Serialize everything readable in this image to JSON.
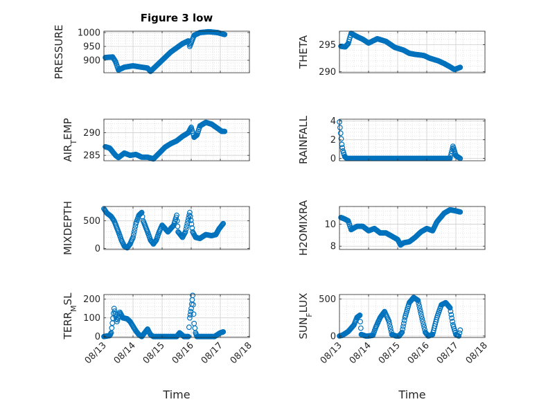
{
  "figure": {
    "title": "Figure 3 low"
  },
  "chart_data": [
    {
      "type": "scatter",
      "title": "Figure 3 low",
      "ylabel": "PRESSURE",
      "ylim": [
        855,
        1005
      ],
      "yticks": [
        900,
        950,
        1000
      ],
      "xlabel": "",
      "xlim": [
        13,
        18
      ],
      "xticks": [
        "08/13",
        "08/14",
        "08/15",
        "08/16",
        "08/17",
        "08/18"
      ],
      "xtick_labels_shown": false,
      "grid": true,
      "series": [
        {
          "color": "#0072BD",
          "marker": "circle",
          "trend": [
            [
              13.05,
              910
            ],
            [
              13.3,
              912
            ],
            [
              13.4,
              895
            ],
            [
              13.5,
              865
            ],
            [
              13.7,
              875
            ],
            [
              14.0,
              880
            ],
            [
              14.3,
              875
            ],
            [
              14.5,
              872
            ],
            [
              14.6,
              860
            ],
            [
              14.8,
              880
            ],
            [
              15.1,
              910
            ],
            [
              15.3,
              930
            ],
            [
              15.5,
              945
            ],
            [
              15.7,
              960
            ],
            [
              15.9,
              970
            ],
            [
              15.95,
              950
            ],
            [
              16.1,
              990
            ],
            [
              16.3,
              1000
            ],
            [
              16.6,
              1003
            ],
            [
              16.9,
              1000
            ],
            [
              17.15,
              993
            ]
          ]
        }
      ]
    },
    {
      "type": "scatter",
      "ylabel": "THETA",
      "ylim": [
        289.8,
        297.5
      ],
      "yticks": [
        290,
        295
      ],
      "xlim": [
        13,
        18
      ],
      "xtick_labels_shown": false,
      "grid": true,
      "series": [
        {
          "color": "#0072BD",
          "marker": "circle",
          "trend": [
            [
              13.05,
              294.7
            ],
            [
              13.2,
              294.6
            ],
            [
              13.3,
              295.2
            ],
            [
              13.4,
              297.1
            ],
            [
              13.6,
              296.5
            ],
            [
              13.8,
              296.0
            ],
            [
              14.0,
              295.3
            ],
            [
              14.3,
              296.1
            ],
            [
              14.6,
              295.6
            ],
            [
              14.9,
              294.5
            ],
            [
              15.2,
              294.0
            ],
            [
              15.4,
              293.4
            ],
            [
              15.6,
              293.2
            ],
            [
              15.9,
              293.0
            ],
            [
              16.1,
              292.5
            ],
            [
              16.4,
              292.0
            ],
            [
              16.6,
              291.5
            ],
            [
              16.8,
              290.9
            ],
            [
              16.95,
              290.4
            ],
            [
              17.15,
              290.8
            ]
          ]
        }
      ]
    },
    {
      "type": "scatter",
      "ylabel": "AIR_TEMP",
      "ylabel_main": "AIR",
      "ylabel_sub": "T",
      "ylabel_tail": "EMP",
      "ylim": [
        283.8,
        293
      ],
      "yticks": [
        285,
        290
      ],
      "xlim": [
        13,
        18
      ],
      "xtick_labels_shown": false,
      "grid": true,
      "series": [
        {
          "color": "#0072BD",
          "marker": "circle",
          "trend": [
            [
              13.05,
              286.9
            ],
            [
              13.2,
              286.6
            ],
            [
              13.4,
              285.0
            ],
            [
              13.5,
              284.5
            ],
            [
              13.7,
              285.5
            ],
            [
              13.9,
              285.0
            ],
            [
              14.1,
              285.2
            ],
            [
              14.3,
              284.6
            ],
            [
              14.5,
              284.6
            ],
            [
              14.7,
              284.2
            ],
            [
              14.9,
              285.5
            ],
            [
              15.1,
              286.8
            ],
            [
              15.3,
              287.6
            ],
            [
              15.5,
              288.2
            ],
            [
              15.7,
              289.2
            ],
            [
              15.9,
              290.0
            ],
            [
              16.0,
              291.2
            ],
            [
              16.1,
              289.0
            ],
            [
              16.2,
              289.5
            ],
            [
              16.3,
              291.5
            ],
            [
              16.5,
              292.3
            ],
            [
              16.7,
              291.9
            ],
            [
              16.9,
              291.0
            ],
            [
              17.05,
              290.3
            ],
            [
              17.15,
              290.3
            ]
          ]
        }
      ]
    },
    {
      "type": "scatter",
      "ylabel": "RAINFALL",
      "ylim": [
        -0.25,
        4.2
      ],
      "yticks": [
        0,
        2,
        4
      ],
      "xlim": [
        13,
        18
      ],
      "xtick_labels_shown": false,
      "grid": true,
      "series": [
        {
          "color": "#0072BD",
          "marker": "circle",
          "trend": [
            [
              13.0,
              3.9
            ],
            [
              13.08,
              1.5
            ],
            [
              13.12,
              0.8
            ],
            [
              13.18,
              0.2
            ],
            [
              13.25,
              0.0
            ],
            [
              16.8,
              0.0
            ],
            [
              16.9,
              1.3
            ],
            [
              16.95,
              0.8
            ],
            [
              17.0,
              0.3
            ],
            [
              17.1,
              0.1
            ],
            [
              17.15,
              0.0
            ]
          ]
        }
      ]
    },
    {
      "type": "scatter",
      "ylabel": "MIXDEPTH",
      "ylim": [
        -20,
        760
      ],
      "yticks": [
        0,
        500
      ],
      "xlim": [
        13,
        18
      ],
      "xtick_labels_shown": false,
      "grid": true,
      "series": [
        {
          "color": "#0072BD",
          "marker": "circle",
          "trend": [
            [
              13.0,
              720
            ],
            [
              13.1,
              640
            ],
            [
              13.25,
              580
            ],
            [
              13.35,
              500
            ],
            [
              13.5,
              300
            ],
            [
              13.6,
              150
            ],
            [
              13.7,
              40
            ],
            [
              13.8,
              10
            ],
            [
              13.9,
              80
            ],
            [
              14.0,
              200
            ],
            [
              14.1,
              450
            ],
            [
              14.2,
              600
            ],
            [
              14.3,
              650
            ],
            [
              14.35,
              500
            ],
            [
              14.5,
              300
            ],
            [
              14.6,
              150
            ],
            [
              14.7,
              80
            ],
            [
              14.8,
              150
            ],
            [
              14.9,
              300
            ],
            [
              15.0,
              420
            ],
            [
              15.2,
              300
            ],
            [
              15.4,
              420
            ],
            [
              15.5,
              600
            ],
            [
              15.55,
              300
            ],
            [
              15.7,
              200
            ],
            [
              15.8,
              300
            ],
            [
              15.95,
              650
            ],
            [
              16.05,
              300
            ],
            [
              16.15,
              200
            ],
            [
              16.3,
              180
            ],
            [
              16.5,
              250
            ],
            [
              16.7,
              230
            ],
            [
              16.85,
              250
            ],
            [
              16.95,
              350
            ],
            [
              17.1,
              450
            ]
          ]
        }
      ]
    },
    {
      "type": "scatter",
      "ylabel": "H2OMIXRA",
      "ylim": [
        7.7,
        11.6
      ],
      "yticks": [
        8,
        10
      ],
      "xlim": [
        13,
        18
      ],
      "xtick_labels_shown": false,
      "grid": true,
      "series": [
        {
          "color": "#0072BD",
          "marker": "circle",
          "trend": [
            [
              13.05,
              10.6
            ],
            [
              13.15,
              10.5
            ],
            [
              13.3,
              10.3
            ],
            [
              13.4,
              9.5
            ],
            [
              13.6,
              9.8
            ],
            [
              13.8,
              9.8
            ],
            [
              14.0,
              9.4
            ],
            [
              14.2,
              9.6
            ],
            [
              14.4,
              9.2
            ],
            [
              14.6,
              9.2
            ],
            [
              14.8,
              8.9
            ],
            [
              15.0,
              8.6
            ],
            [
              15.1,
              8.1
            ],
            [
              15.2,
              8.3
            ],
            [
              15.4,
              8.4
            ],
            [
              15.6,
              8.8
            ],
            [
              15.8,
              9.3
            ],
            [
              16.0,
              9.6
            ],
            [
              16.2,
              9.4
            ],
            [
              16.35,
              10.2
            ],
            [
              16.6,
              11.0
            ],
            [
              16.8,
              11.3
            ],
            [
              17.0,
              11.2
            ],
            [
              17.15,
              11.1
            ]
          ]
        }
      ]
    },
    {
      "type": "scatter",
      "ylabel": "TERR_MSL",
      "ylabel_main": "TERR",
      "ylabel_sub": "M",
      "ylabel_tail": "SL",
      "ylim": [
        -5,
        225
      ],
      "yticks": [
        0,
        100,
        200
      ],
      "xlim": [
        13,
        18
      ],
      "xticks": [
        "08/13",
        "08/14",
        "08/15",
        "08/16",
        "08/17",
        "08/18"
      ],
      "xtick_labels_shown": true,
      "xlabel": "Time",
      "grid": true,
      "series": [
        {
          "color": "#0072BD",
          "marker": "circle",
          "trend": [
            [
              13.0,
              0
            ],
            [
              13.2,
              5
            ],
            [
              13.25,
              20
            ],
            [
              13.35,
              150
            ],
            [
              13.45,
              80
            ],
            [
              13.55,
              130
            ],
            [
              13.65,
              100
            ],
            [
              13.8,
              95
            ],
            [
              13.9,
              80
            ],
            [
              14.0,
              55
            ],
            [
              14.1,
              30
            ],
            [
              14.2,
              10
            ],
            [
              14.3,
              0
            ],
            [
              14.5,
              40
            ],
            [
              14.6,
              10
            ],
            [
              14.7,
              0
            ],
            [
              15.5,
              0
            ],
            [
              15.6,
              20
            ],
            [
              15.75,
              0
            ],
            [
              15.9,
              0
            ],
            [
              15.95,
              100
            ],
            [
              16.0,
              150
            ],
            [
              16.05,
              220
            ],
            [
              16.1,
              70
            ],
            [
              16.15,
              20
            ],
            [
              16.2,
              0
            ],
            [
              16.8,
              0
            ],
            [
              16.9,
              10
            ],
            [
              17.0,
              20
            ],
            [
              17.1,
              25
            ]
          ]
        }
      ]
    },
    {
      "type": "scatter",
      "ylabel": "SUN_FLUX",
      "ylabel_main": "SUN",
      "ylabel_sub": "F",
      "ylabel_tail": "LUX",
      "ylim": [
        -20,
        560
      ],
      "yticks": [
        0,
        500
      ],
      "xlim": [
        13,
        18
      ],
      "xticks": [
        "08/13",
        "08/14",
        "08/15",
        "08/16",
        "08/17",
        "08/18"
      ],
      "xtick_labels_shown": true,
      "xlabel": "Time",
      "grid": true,
      "series": [
        {
          "color": "#0072BD",
          "marker": "circle",
          "trend": [
            [
              13.0,
              0
            ],
            [
              13.1,
              10
            ],
            [
              13.3,
              60
            ],
            [
              13.5,
              150
            ],
            [
              13.6,
              250
            ],
            [
              13.7,
              280
            ],
            [
              13.75,
              20
            ],
            [
              13.9,
              0
            ],
            [
              14.0,
              0
            ],
            [
              14.15,
              10
            ],
            [
              14.25,
              120
            ],
            [
              14.4,
              250
            ],
            [
              14.55,
              330
            ],
            [
              14.7,
              200
            ],
            [
              14.8,
              20
            ],
            [
              14.95,
              0
            ],
            [
              15.05,
              0
            ],
            [
              15.15,
              50
            ],
            [
              15.25,
              250
            ],
            [
              15.4,
              450
            ],
            [
              15.55,
              520
            ],
            [
              15.7,
              480
            ],
            [
              15.8,
              300
            ],
            [
              15.95,
              50
            ],
            [
              16.05,
              0
            ],
            [
              16.2,
              20
            ],
            [
              16.35,
              250
            ],
            [
              16.5,
              420
            ],
            [
              16.65,
              450
            ],
            [
              16.8,
              380
            ],
            [
              16.9,
              150
            ],
            [
              17.0,
              20
            ],
            [
              17.1,
              0
            ],
            [
              17.15,
              80
            ]
          ]
        }
      ]
    }
  ]
}
